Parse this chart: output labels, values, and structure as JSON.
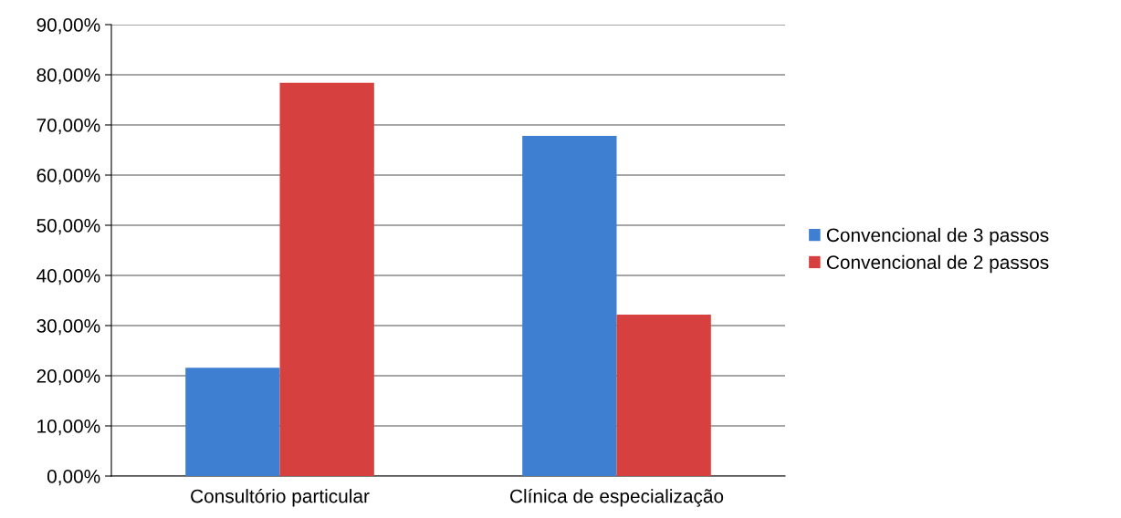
{
  "chart_data": {
    "type": "bar",
    "categories": [
      "Consultório particular",
      "Clínica de especialização"
    ],
    "series": [
      {
        "name": "Convencional de 3 passos",
        "color": "#3f7fd1",
        "values": [
          21.6,
          67.8
        ]
      },
      {
        "name": "Convencional de 2 passos",
        "color": "#d6403e",
        "values": [
          78.4,
          32.2
        ]
      }
    ],
    "ylim": [
      0,
      90
    ],
    "yticks": [
      {
        "value": 0,
        "label": "0,00%"
      },
      {
        "value": 10,
        "label": "10,00%"
      },
      {
        "value": 20,
        "label": "20,00%"
      },
      {
        "value": 30,
        "label": "30,00%"
      },
      {
        "value": 40,
        "label": "40,00%"
      },
      {
        "value": 50,
        "label": "50,00%"
      },
      {
        "value": 60,
        "label": "60,00%"
      },
      {
        "value": 70,
        "label": "70,00%"
      },
      {
        "value": 80,
        "label": "80,00%"
      },
      {
        "value": 90,
        "label": "90,00%"
      }
    ],
    "grid": "y",
    "legend": "right"
  }
}
